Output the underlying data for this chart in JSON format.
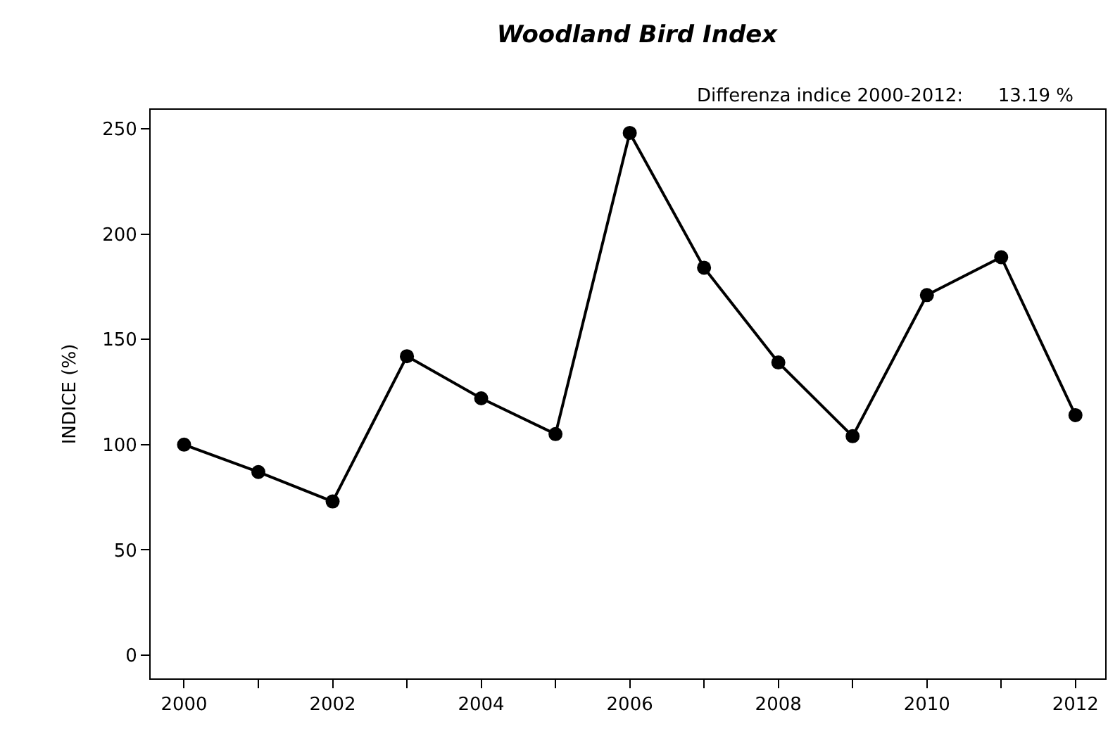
{
  "chart_data": {
    "type": "line",
    "title": "Woodland Bird Index",
    "subtitle": "Differenza indice 2000-2012:      13.19 %",
    "ylabel": "INDICE (%)",
    "x": [
      2000,
      2001,
      2002,
      2003,
      2004,
      2005,
      2006,
      2007,
      2008,
      2009,
      2010,
      2011,
      2012
    ],
    "series": [
      {
        "color": "#000000",
        "values": [
          100,
          87,
          73,
          142,
          122,
          105,
          248,
          184,
          139,
          104,
          171,
          189,
          114
        ]
      }
    ],
    "xlim": [
      1999.55,
      2012.4
    ],
    "ylim": [
      -11,
      259
    ],
    "xticks": [
      2000,
      {
        "value": 2001,
        "label": null
      },
      2002,
      {
        "value": 2003,
        "label": null
      },
      2004,
      {
        "value": 2005,
        "label": null
      },
      2006,
      {
        "value": 2007,
        "label": null
      },
      2008,
      {
        "value": 2009,
        "label": null
      },
      2010,
      {
        "value": 2011,
        "label": null
      },
      2012
    ],
    "yticks": [
      0,
      50,
      100,
      150,
      200,
      250
    ],
    "marker": "circle",
    "line_style": "solid"
  }
}
